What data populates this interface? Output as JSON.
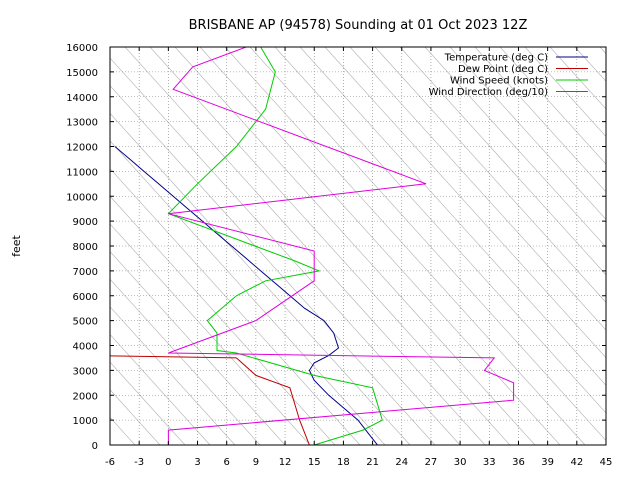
{
  "chart_data": {
    "type": "line",
    "title": "BRISBANE AP (94578) Sounding at 01 Oct 2023 12Z",
    "xlabel": "",
    "ylabel": "feet",
    "xlim": [
      -6,
      45
    ],
    "ylim": [
      0,
      16000
    ],
    "xticks": [
      -6,
      -3,
      0,
      3,
      6,
      9,
      12,
      15,
      18,
      21,
      24,
      27,
      30,
      33,
      36,
      39,
      42,
      45
    ],
    "yticks": [
      0,
      1000,
      2000,
      3000,
      4000,
      5000,
      6000,
      7000,
      8000,
      9000,
      10000,
      11000,
      12000,
      13000,
      14000,
      15000,
      16000
    ],
    "grid": true,
    "legend_position": "top-right",
    "skew_lines": true,
    "series": [
      {
        "name": "Temperature (deg C)",
        "color": "#00008b",
        "points": [
          [
            21.5,
            0
          ],
          [
            20.5,
            500
          ],
          [
            19.5,
            1000
          ],
          [
            18,
            1500
          ],
          [
            16.5,
            2000
          ],
          [
            15,
            2600
          ],
          [
            14.5,
            3000
          ],
          [
            15,
            3300
          ],
          [
            16.5,
            3600
          ],
          [
            17.5,
            3900
          ],
          [
            17,
            4500
          ],
          [
            16,
            5000
          ],
          [
            14,
            5500
          ],
          [
            12.5,
            6000
          ],
          [
            11,
            6500
          ],
          [
            9.5,
            7000
          ],
          [
            8,
            7500
          ],
          [
            6.5,
            8000
          ],
          [
            5,
            8500
          ],
          [
            3.5,
            9000
          ],
          [
            2,
            9500
          ],
          [
            0.5,
            10000
          ],
          [
            -1,
            10500
          ],
          [
            -2.5,
            11000
          ],
          [
            -4,
            11500
          ],
          [
            -5.5,
            12000
          ]
        ]
      },
      {
        "name": "Dew Point (deg C)",
        "color": "#c00000",
        "points": [
          [
            14.5,
            0
          ],
          [
            14,
            500
          ],
          [
            13.5,
            1000
          ],
          [
            12.5,
            2300
          ],
          [
            9,
            2800
          ],
          [
            7,
            3500
          ],
          [
            -6,
            3580
          ]
        ]
      },
      {
        "name": "Wind Speed (knots)",
        "color": "#00cc00",
        "points": [
          [
            15,
            0
          ],
          [
            20,
            600
          ],
          [
            22,
            1000
          ],
          [
            21,
            2300
          ],
          [
            15,
            2800
          ],
          [
            7,
            3700
          ],
          [
            5,
            3800
          ],
          [
            5,
            4500
          ],
          [
            4,
            5000
          ],
          [
            5.5,
            5500
          ],
          [
            7,
            6000
          ],
          [
            10,
            6600
          ],
          [
            15.5,
            7000
          ],
          [
            13,
            7400
          ],
          [
            0,
            9300
          ],
          [
            3,
            10500
          ],
          [
            7,
            12000
          ],
          [
            10,
            13500
          ],
          [
            11,
            15000
          ],
          [
            9.5,
            16000
          ]
        ]
      },
      {
        "name": "Wind Direction (deg/10)",
        "color": "#e000e0",
        "points": [
          [
            0,
            0
          ],
          [
            0,
            600
          ],
          [
            35.5,
            1800
          ],
          [
            35.5,
            2500
          ],
          [
            32.5,
            3000
          ],
          [
            33.5,
            3500
          ],
          [
            0,
            3700
          ],
          [
            9,
            5000
          ],
          [
            15,
            6600
          ],
          [
            15,
            7800
          ],
          [
            0,
            9300
          ],
          [
            26.5,
            10500
          ],
          [
            0.5,
            14300
          ],
          [
            2.5,
            15200
          ],
          [
            8,
            16000
          ]
        ]
      }
    ]
  }
}
